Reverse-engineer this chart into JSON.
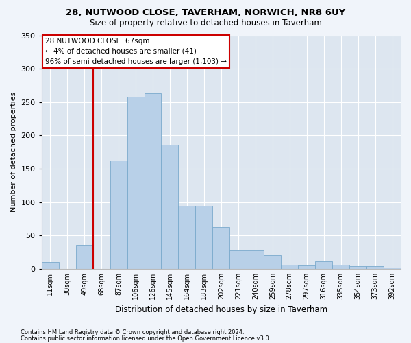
{
  "title1": "28, NUTWOOD CLOSE, TAVERHAM, NORWICH, NR8 6UY",
  "title2": "Size of property relative to detached houses in Taverham",
  "xlabel": "Distribution of detached houses by size in Taverham",
  "ylabel": "Number of detached properties",
  "categories": [
    "11sqm",
    "30sqm",
    "49sqm",
    "68sqm",
    "87sqm",
    "106sqm",
    "126sqm",
    "145sqm",
    "164sqm",
    "183sqm",
    "202sqm",
    "221sqm",
    "240sqm",
    "259sqm",
    "278sqm",
    "297sqm",
    "316sqm",
    "335sqm",
    "354sqm",
    "373sqm",
    "392sqm"
  ],
  "values": [
    10,
    0,
    36,
    0,
    162,
    258,
    263,
    186,
    95,
    95,
    63,
    28,
    28,
    20,
    6,
    5,
    11,
    6,
    4,
    4,
    2
  ],
  "bar_color": "#b8d0e8",
  "bar_edge_color": "#7aaacc",
  "vline_color": "#cc0000",
  "vline_x_index": 3,
  "annotation_text": "28 NUTWOOD CLOSE: 67sqm\n← 4% of detached houses are smaller (41)\n96% of semi-detached houses are larger (1,103) →",
  "annotation_box_color": "#ffffff",
  "annotation_box_edge": "#cc0000",
  "ylim": [
    0,
    350
  ],
  "yticks": [
    0,
    50,
    100,
    150,
    200,
    250,
    300,
    350
  ],
  "footnote1": "Contains HM Land Registry data © Crown copyright and database right 2024.",
  "footnote2": "Contains public sector information licensed under the Open Government Licence v3.0.",
  "bg_color": "#f0f4fa",
  "plot_bg_color": "#dde6f0"
}
